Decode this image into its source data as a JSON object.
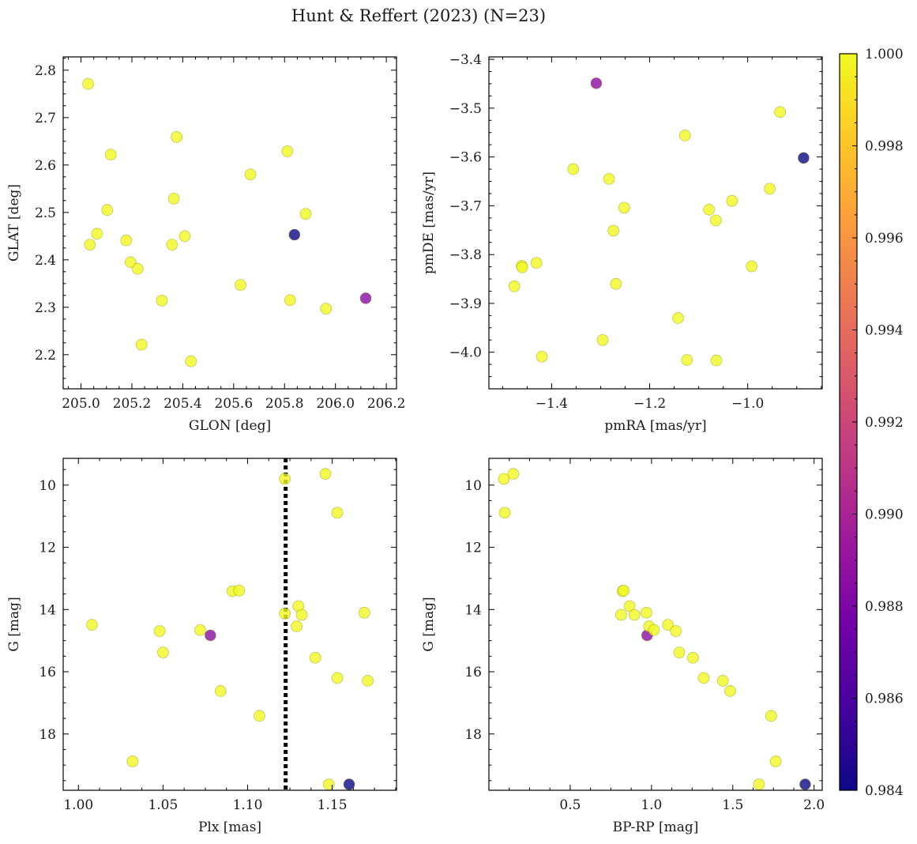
{
  "title": "Hunt & Reffert (2023) (N=23)",
  "colors": {
    "cmap": [
      "#0d0887",
      "#46039f",
      "#7201a8",
      "#9c179e",
      "#bd3786",
      "#d8576b",
      "#ed7953",
      "#fb9f3a",
      "#fdca26",
      "#f0f921"
    ],
    "point_alpha": 0.8,
    "ref_line": "#000000"
  },
  "colorbar": {
    "min": 0.984,
    "max": 1.0,
    "ticks": [
      0.984,
      0.986,
      0.988,
      0.99,
      0.992,
      0.994,
      0.996,
      0.998,
      1.0
    ],
    "tick_labels": [
      "0.984",
      "0.986",
      "0.988",
      "0.990",
      "0.992",
      "0.994",
      "0.996",
      "0.998",
      "1.000"
    ]
  },
  "chart_data": [
    {
      "type": "scatter",
      "xlabel": "GLON [deg]",
      "ylabel": "GLAT [deg]",
      "xlim": [
        204.93,
        206.24
      ],
      "ylim": [
        2.128,
        2.828
      ],
      "xticks": [
        205.0,
        205.2,
        205.4,
        205.6,
        205.8,
        206.0,
        206.2
      ],
      "xtick_labels": [
        "205.0",
        "205.2",
        "205.4",
        "205.6",
        "205.8",
        "206.0",
        "206.2"
      ],
      "yticks": [
        2.2,
        2.3,
        2.4,
        2.5,
        2.6,
        2.7,
        2.8
      ],
      "ytick_labels": [
        "2.2",
        "2.3",
        "2.4",
        "2.5",
        "2.6",
        "2.7",
        "2.8"
      ],
      "x": [
        205.028,
        205.035,
        205.063,
        205.103,
        205.117,
        205.178,
        205.195,
        205.223,
        205.238,
        205.318,
        205.358,
        205.365,
        205.376,
        205.408,
        205.432,
        205.627,
        205.666,
        205.811,
        205.822,
        205.839,
        205.883,
        205.963,
        206.119
      ],
      "y": [
        2.771,
        2.432,
        2.455,
        2.505,
        2.622,
        2.441,
        2.395,
        2.381,
        2.221,
        2.314,
        2.432,
        2.529,
        2.659,
        2.45,
        2.186,
        2.347,
        2.58,
        2.629,
        2.315,
        2.453,
        2.497,
        2.297,
        2.319
      ],
      "c": [
        1,
        1,
        1,
        1,
        1,
        1,
        1,
        1,
        1,
        1,
        1,
        1,
        1,
        1,
        1,
        1,
        1,
        1,
        1,
        0.984,
        1,
        1,
        0.9885
      ]
    },
    {
      "type": "scatter",
      "xlabel": "pmRA [mas/yr]",
      "ylabel": "pmDE [mas/yr]",
      "xlim": [
        -1.528,
        -0.848
      ],
      "ylim": [
        -4.075,
        -3.395
      ],
      "xticks": [
        -1.4,
        -1.2,
        -1.0
      ],
      "xtick_labels": [
        "−1.4",
        "−1.2",
        "−1.0"
      ],
      "yticks": [
        -4.0,
        -3.9,
        -3.8,
        -3.7,
        -3.6,
        -3.5,
        -3.4
      ],
      "ytick_labels": [
        "−4.0",
        "−3.9",
        "−3.8",
        "−3.7",
        "−3.6",
        "−3.5",
        "−3.4"
      ],
      "x": [
        -1.476,
        -1.461,
        -1.46,
        -1.431,
        -1.42,
        -1.356,
        -1.309,
        -1.296,
        -1.283,
        -1.274,
        -1.269,
        -1.252,
        -1.142,
        -1.128,
        -1.124,
        -1.079,
        -1.065,
        -1.064,
        -1.032,
        -0.992,
        -0.955,
        -0.934,
        -0.886
      ],
      "y": [
        -3.865,
        -3.823,
        -3.826,
        -3.817,
        -4.009,
        -3.625,
        -3.449,
        -3.975,
        -3.645,
        -3.751,
        -3.86,
        -3.704,
        -3.93,
        -3.556,
        -4.016,
        -3.708,
        -3.73,
        -4.017,
        -3.69,
        -3.824,
        -3.665,
        -3.508,
        -3.602
      ],
      "c": [
        1,
        1,
        1,
        1,
        1,
        1,
        0.9885,
        1,
        1,
        1,
        1,
        1,
        1,
        1,
        1,
        1,
        1,
        1,
        1,
        1,
        1,
        1,
        0.984
      ]
    },
    {
      "type": "scatter",
      "xlabel": "Plx [mas]",
      "ylabel": "G [mag]",
      "xlim": [
        0.991,
        1.188
      ],
      "ylim": [
        19.81,
        9.14
      ],
      "y_inverted": true,
      "xticks": [
        1.0,
        1.05,
        1.1,
        1.15
      ],
      "xtick_labels": [
        "1.00",
        "1.05",
        "1.10",
        "1.15"
      ],
      "yticks": [
        10,
        12,
        14,
        16,
        18
      ],
      "ytick_labels": [
        "10",
        "12",
        "14",
        "16",
        "18"
      ],
      "vline": 1.1225,
      "x": [
        1.008,
        1.032,
        1.048,
        1.05,
        1.072,
        1.078,
        1.084,
        1.091,
        1.095,
        1.107,
        1.122,
        1.122,
        1.129,
        1.13,
        1.132,
        1.14,
        1.146,
        1.148,
        1.153,
        1.153,
        1.16,
        1.169,
        1.171
      ],
      "y": [
        14.49,
        18.88,
        14.69,
        15.38,
        14.66,
        14.83,
        16.62,
        13.41,
        13.39,
        17.42,
        9.8,
        14.13,
        14.54,
        13.89,
        14.17,
        15.55,
        9.64,
        19.62,
        10.89,
        16.2,
        19.62,
        14.1,
        16.29
      ],
      "c": [
        1,
        1,
        1,
        1,
        1,
        0.9885,
        1,
        1,
        1,
        1,
        1,
        1,
        1,
        1,
        1,
        1,
        1,
        1,
        1,
        1,
        0.984,
        1,
        1
      ]
    },
    {
      "type": "scatter",
      "xlabel": "BP-RP [mag]",
      "ylabel": "G [mag]",
      "xlim": [
        0.0,
        2.05
      ],
      "ylim": [
        19.81,
        9.14
      ],
      "y_inverted": true,
      "xticks": [
        0.5,
        1.0,
        1.5,
        2.0
      ],
      "xtick_labels": [
        "0.5",
        "1.0",
        "1.5",
        "2.0"
      ],
      "yticks": [
        10,
        12,
        14,
        16,
        18
      ],
      "ytick_labels": [
        "10",
        "12",
        "14",
        "16",
        "18"
      ],
      "x": [
        0.092,
        0.097,
        0.15,
        0.813,
        0.822,
        0.829,
        0.865,
        0.895,
        0.969,
        0.973,
        0.985,
        1.015,
        1.101,
        1.15,
        1.171,
        1.255,
        1.321,
        1.439,
        1.484,
        1.661,
        1.736,
        1.764,
        1.945
      ],
      "y": [
        9.8,
        10.89,
        9.64,
        14.17,
        13.41,
        13.39,
        13.89,
        14.17,
        14.1,
        14.83,
        14.54,
        14.66,
        14.49,
        14.69,
        15.38,
        15.55,
        16.2,
        16.29,
        16.62,
        19.62,
        17.42,
        18.88,
        19.62
      ],
      "c": [
        1,
        1,
        1,
        1,
        1,
        1,
        1,
        1,
        1,
        0.9885,
        1,
        1,
        1,
        1,
        1,
        1,
        1,
        1,
        1,
        1,
        1,
        1,
        0.984
      ]
    }
  ]
}
